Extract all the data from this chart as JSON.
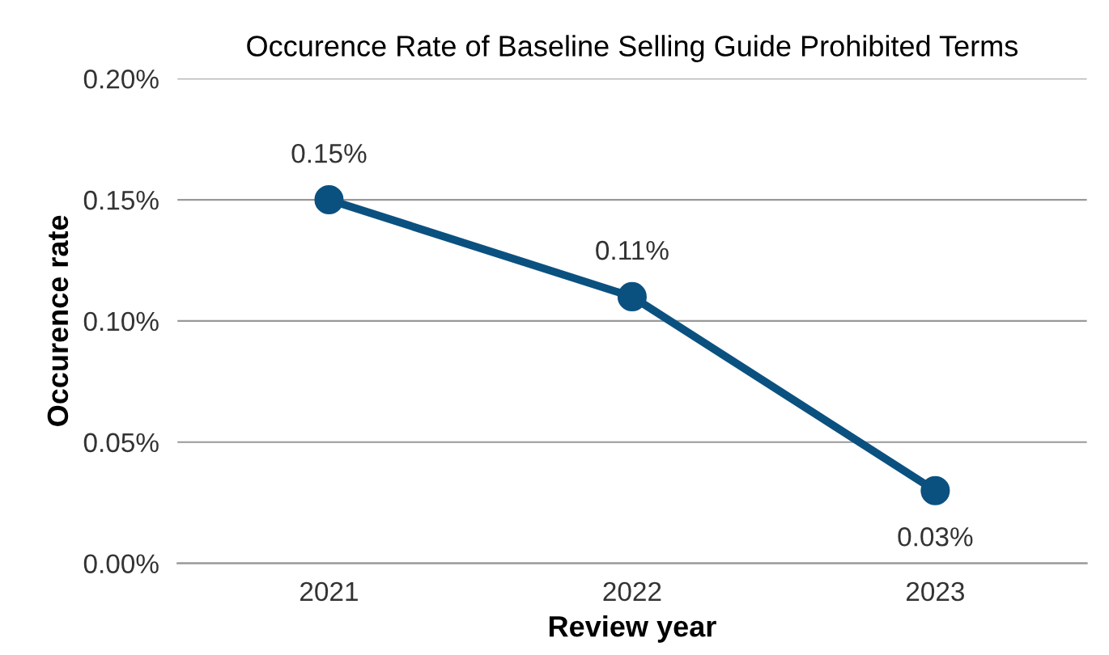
{
  "chart_data": {
    "type": "line",
    "title": "Occurence Rate of Baseline Selling Guide Prohibited Terms",
    "xlabel": "Review year",
    "ylabel": "Occurence rate",
    "categories": [
      "2021",
      "2022",
      "2023"
    ],
    "series": [
      {
        "color": "#0b5180",
        "values": [
          0.15,
          0.11,
          0.03
        ]
      }
    ],
    "value_labels": [
      "0.15%",
      "0.11%",
      "0.03%"
    ],
    "ylim": [
      0,
      0.2
    ],
    "yticks": [
      {
        "value": 0,
        "label": "0.00%"
      },
      {
        "value": 0.05,
        "label": "0.05%"
      },
      {
        "value": 0.1,
        "label": "0.10%"
      },
      {
        "value": 0.15,
        "label": "0.15%"
      },
      {
        "value": 0.2,
        "label": "0.20%"
      }
    ],
    "grid": "y",
    "marker": "circle",
    "line_style": "solid"
  }
}
